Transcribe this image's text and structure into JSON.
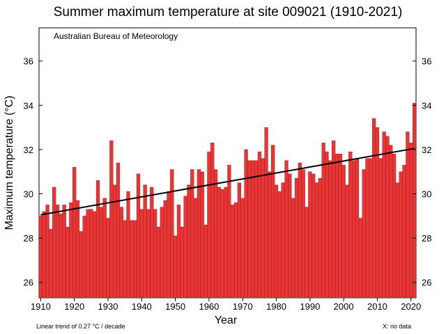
{
  "chart_data": {
    "type": "bar",
    "title": "Summer maximum temperature at site 009021 (1910-2021)",
    "source_label": "Australian Bureau of Meteorology",
    "xlabel": "Year",
    "ylabel": "Maximum temperature  (°C)",
    "footnote_left": "Linear trend of 0.27  °C / decade",
    "footnote_right": "X: no data",
    "ylim": [
      25.3,
      37.5
    ],
    "xlim": [
      1909.5,
      2021.5
    ],
    "y_ticks": [
      26,
      28,
      30,
      32,
      34,
      36
    ],
    "x_ticks": [
      1910,
      1920,
      1930,
      1940,
      1950,
      1960,
      1970,
      1980,
      1990,
      2000,
      2010,
      2020
    ],
    "bar_color": "#e83535",
    "trend_color": "#000000",
    "trend": {
      "start_year": 1910,
      "start_value": 29.05,
      "end_year": 2021,
      "end_value": 32.05
    },
    "x": [
      1910,
      1911,
      1912,
      1913,
      1914,
      1915,
      1916,
      1917,
      1918,
      1919,
      1920,
      1921,
      1922,
      1923,
      1924,
      1925,
      1926,
      1927,
      1928,
      1929,
      1930,
      1931,
      1932,
      1933,
      1934,
      1935,
      1936,
      1937,
      1938,
      1939,
      1940,
      1941,
      1942,
      1943,
      1944,
      1945,
      1946,
      1947,
      1948,
      1949,
      1950,
      1951,
      1952,
      1953,
      1954,
      1955,
      1956,
      1957,
      1958,
      1959,
      1960,
      1961,
      1962,
      1963,
      1964,
      1965,
      1966,
      1967,
      1968,
      1969,
      1970,
      1971,
      1972,
      1973,
      1974,
      1975,
      1976,
      1977,
      1978,
      1979,
      1980,
      1981,
      1982,
      1983,
      1984,
      1985,
      1986,
      1987,
      1988,
      1989,
      1990,
      1991,
      1992,
      1993,
      1994,
      1995,
      1996,
      1997,
      1998,
      1999,
      2000,
      2001,
      2002,
      2003,
      2004,
      2005,
      2006,
      2007,
      2008,
      2009,
      2010,
      2011,
      2012,
      2013,
      2014,
      2015,
      2016,
      2017,
      2018,
      2019,
      2020,
      2021
    ],
    "values": [
      29.0,
      29.2,
      29.5,
      28.4,
      30.3,
      29.5,
      29.1,
      29.5,
      28.5,
      29.6,
      31.2,
      29.7,
      28.3,
      29.0,
      29.3,
      29.3,
      29.2,
      30.6,
      29.4,
      29.8,
      28.9,
      32.4,
      30.4,
      31.4,
      29.4,
      28.8,
      30.1,
      28.8,
      28.8,
      30.9,
      29.3,
      30.4,
      29.3,
      30.3,
      29.3,
      28.5,
      29.4,
      29.7,
      30.1,
      31.1,
      28.1,
      29.5,
      28.5,
      29.9,
      30.4,
      31.1,
      29.8,
      31.1,
      31.0,
      28.6,
      31.9,
      32.3,
      31.1,
      30.3,
      30.2,
      30.3,
      31.3,
      29.5,
      29.6,
      30.5,
      29.8,
      32.0,
      31.5,
      31.5,
      31.5,
      31.9,
      31.6,
      33.0,
      31.0,
      32.2,
      30.4,
      30.1,
      30.5,
      31.5,
      30.9,
      29.8,
      30.7,
      31.4,
      31.1,
      29.4,
      31.0,
      30.9,
      30.5,
      30.7,
      32.3,
      31.9,
      31.5,
      32.4,
      31.8,
      31.8,
      31.3,
      30.4,
      31.9,
      31.5,
      31.6,
      28.9,
      31.1,
      31.6,
      31.6,
      33.4,
      33.0,
      31.6,
      32.8,
      32.6,
      32.2,
      31.8,
      30.5,
      31.0,
      31.3,
      32.8,
      32.3,
      34.1
    ]
  }
}
